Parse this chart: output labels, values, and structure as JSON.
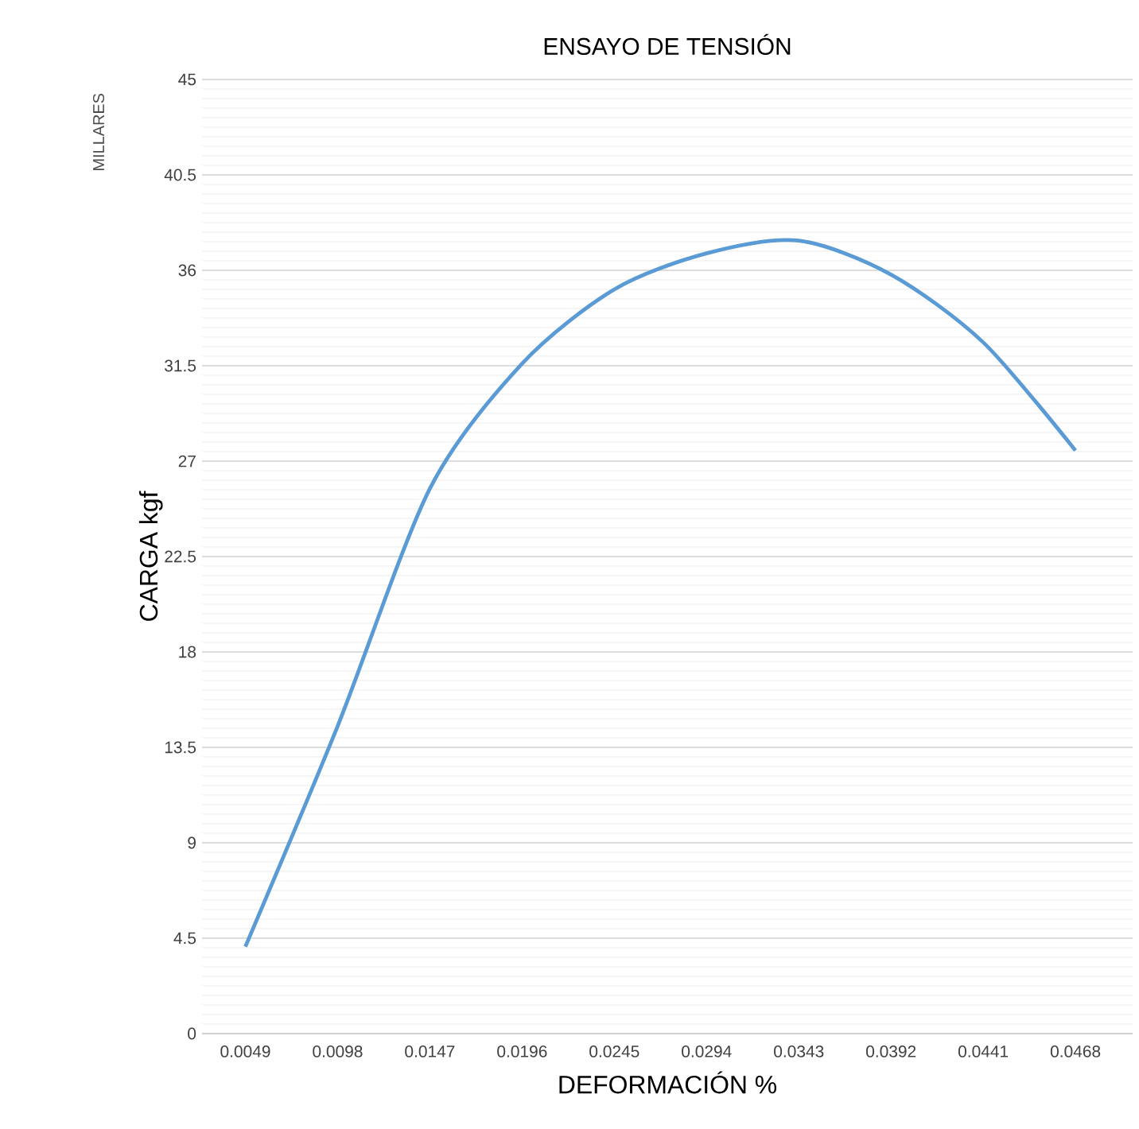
{
  "chart_data": {
    "type": "line",
    "title": "ENSAYO DE TENSIÓN",
    "xlabel": "DEFORMACIÓN %",
    "ylabel": "CARGA kgf",
    "annotations": [
      "MILLARES"
    ],
    "categories": [
      "0.0049",
      "0.0098",
      "0.0147",
      "0.0196",
      "0.0245",
      "0.0294",
      "0.0343",
      "0.0392",
      "0.0441",
      "0.0468"
    ],
    "values": [
      4.1,
      14.5,
      25.7,
      31.6,
      35.1,
      36.8,
      37.4,
      35.8,
      32.6,
      27.5
    ],
    "color": "#5b9bd5",
    "ylim": [
      0,
      45
    ],
    "yticks": [
      0,
      4.5,
      9,
      13.5,
      18,
      22.5,
      27,
      31.5,
      36,
      40.5,
      45
    ],
    "grid": "y"
  }
}
